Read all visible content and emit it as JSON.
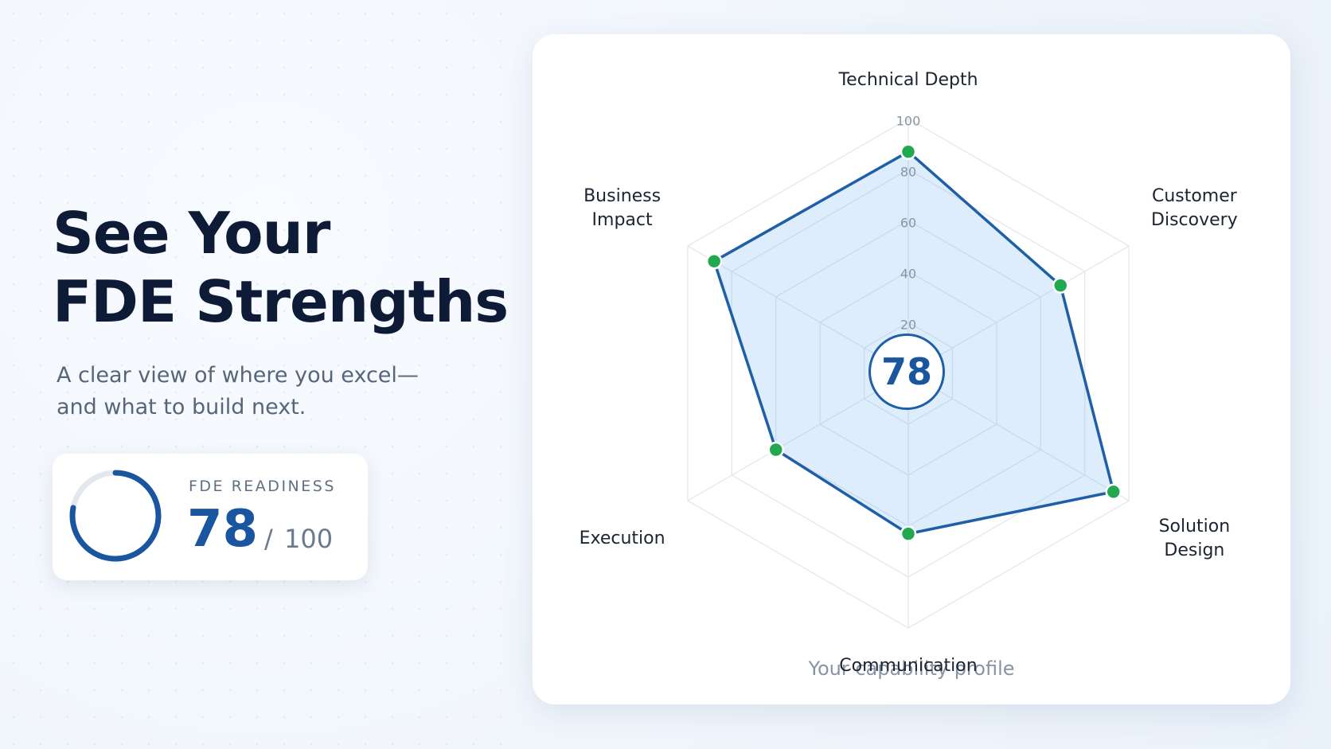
{
  "header": {
    "title_lines": [
      "See Your",
      "FDE Strengths"
    ],
    "subtitle_lines": [
      "A clear view of where you excel—",
      "and what to build next."
    ]
  },
  "readiness": {
    "label": "FDE READINESS",
    "score": 78,
    "separator": "/",
    "max": 100
  },
  "chart_data": {
    "type": "radar",
    "categories": [
      "Technical Depth",
      "Customer Discovery",
      "Solution Design",
      "Communication",
      "Execution",
      "Business Impact"
    ],
    "values": [
      87,
      69,
      93,
      63,
      60,
      88
    ],
    "color": "#1e5fa8",
    "point_color": "#22a94f",
    "ylim": [
      0,
      100
    ],
    "yticks": [
      20,
      40,
      60,
      80,
      100
    ],
    "grid": true,
    "caption": "Your capability profile"
  }
}
